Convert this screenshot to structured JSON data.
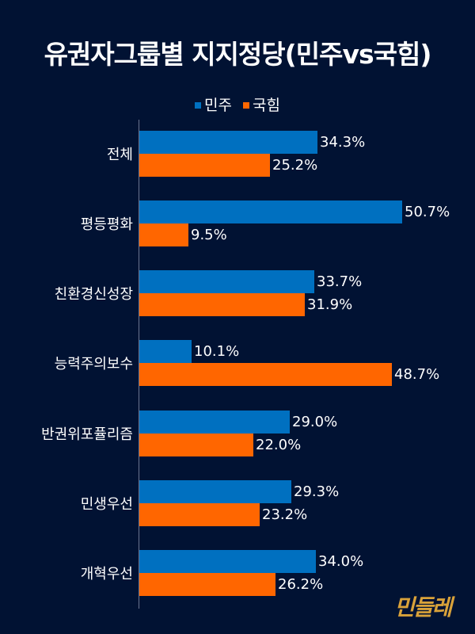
{
  "header": {
    "title": "유권자그룹별 지지정당(민주vs국힘)"
  },
  "legend": [
    {
      "label": "민주",
      "color": "#0070C0"
    },
    {
      "label": "국힘",
      "color": "#FF6600"
    }
  ],
  "logo": {
    "text": "민들레",
    "color": "#D9A23A"
  },
  "colors": {
    "background": "#011233",
    "axis": "#6B7590",
    "text": "#FFFFFF"
  },
  "chart_data": {
    "type": "bar",
    "orientation": "horizontal",
    "title": "유권자그룹별 지지정당(민주vs국힘)",
    "xlabel": "",
    "ylabel": "",
    "unit": "%",
    "grid": false,
    "legend_position": "top",
    "categories": [
      "전체",
      "평등평화",
      "친환경신성장",
      "능력주의보수",
      "반권위포퓰리즘",
      "민생우선",
      "개혁우선"
    ],
    "series": [
      {
        "name": "민주",
        "color": "#0070C0",
        "values": [
          34.3,
          50.7,
          33.7,
          10.1,
          29.0,
          29.3,
          34.0
        ]
      },
      {
        "name": "국힘",
        "color": "#FF6600",
        "values": [
          25.2,
          9.5,
          31.9,
          48.7,
          22.0,
          23.2,
          26.2
        ]
      }
    ],
    "labels": {
      "민주": [
        "34.3%",
        "50.7%",
        "33.7%",
        "10.1%",
        "29.0%",
        "29.3%",
        "34.0%"
      ],
      "국힘": [
        "25.2%",
        "9.5%",
        "31.9%",
        "48.7%",
        "22.0%",
        "23.2%",
        "26.2%"
      ]
    },
    "xlim": [
      0,
      60
    ]
  }
}
